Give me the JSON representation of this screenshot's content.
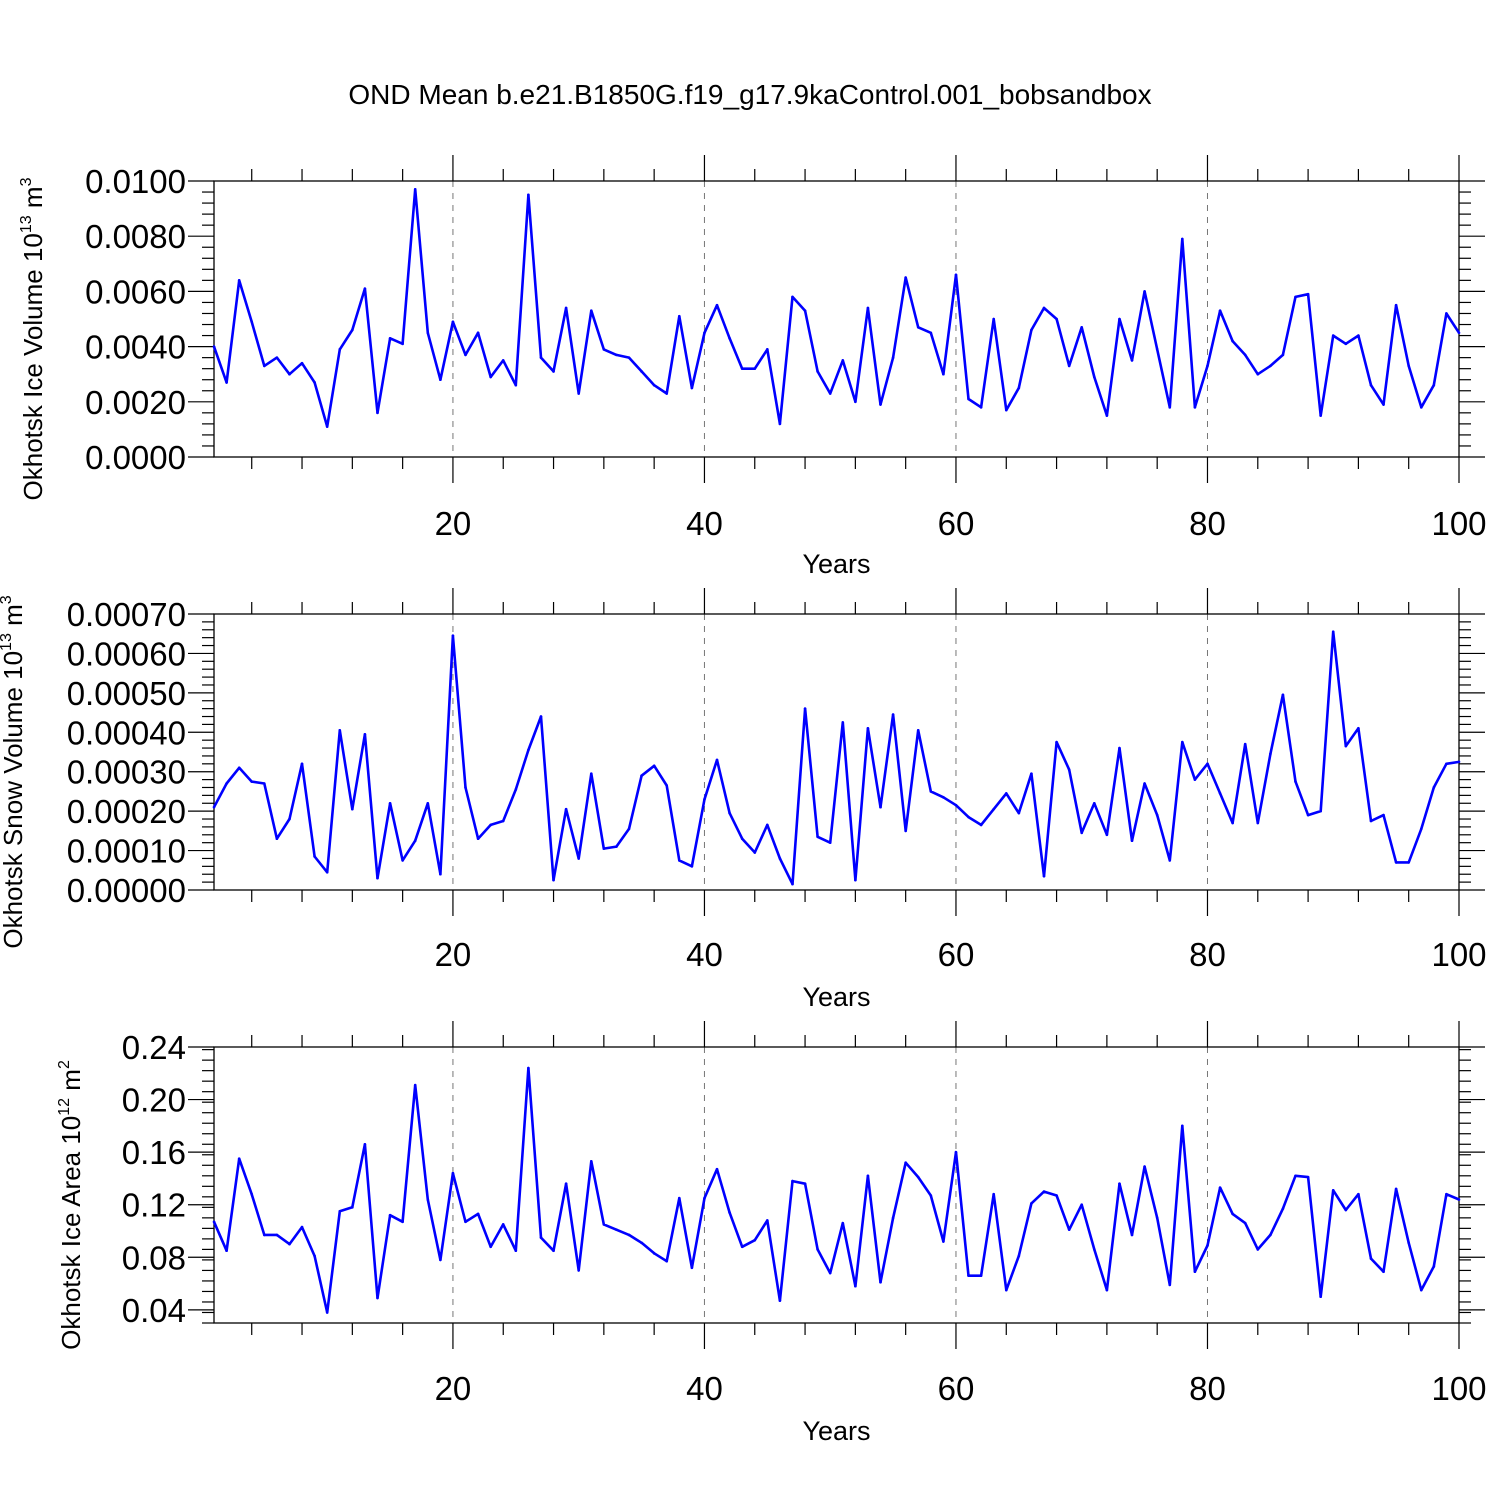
{
  "title": "OND Mean b.e21.B1850G.f19_g17.9kaControl.001_bobsandbox",
  "series_color": "#0000ff",
  "chart_data": [
    {
      "type": "line",
      "ylabel_main": "Okhotsk Ice Volume 10",
      "ylabel_exp": "13",
      "ylabel_unit": " m",
      "ylabel_unit_exp": "3",
      "xlabel": "Years",
      "xlim": [
        1,
        100
      ],
      "ylim": [
        0,
        0.01
      ],
      "yticks": [
        0,
        0.002,
        0.004,
        0.006,
        0.008,
        0.01
      ],
      "ytick_labels": [
        "0.0000",
        "0.0020",
        "0.0040",
        "0.0060",
        "0.0080",
        "0.0100"
      ],
      "xticks": [
        20,
        40,
        60,
        80,
        100
      ],
      "xtick_labels": [
        "20",
        "40",
        "60",
        "80",
        "100"
      ],
      "values": [
        0.004,
        0.0027,
        0.0064,
        0.0049,
        0.0033,
        0.0036,
        0.003,
        0.0034,
        0.0027,
        0.0011,
        0.0039,
        0.0046,
        0.0061,
        0.0016,
        0.0043,
        0.0041,
        0.0097,
        0.0045,
        0.0028,
        0.0049,
        0.0037,
        0.0045,
        0.0029,
        0.0035,
        0.0026,
        0.0095,
        0.0036,
        0.0031,
        0.0054,
        0.0023,
        0.0053,
        0.0039,
        0.0037,
        0.0036,
        0.0031,
        0.0026,
        0.0023,
        0.0051,
        0.0025,
        0.0045,
        0.0055,
        0.0043,
        0.0032,
        0.0032,
        0.0039,
        0.0012,
        0.0058,
        0.0053,
        0.0031,
        0.0023,
        0.0035,
        0.002,
        0.0054,
        0.0019,
        0.0036,
        0.0065,
        0.0047,
        0.0045,
        0.003,
        0.0066,
        0.0021,
        0.0018,
        0.005,
        0.0017,
        0.0025,
        0.0046,
        0.0054,
        0.005,
        0.0033,
        0.0047,
        0.0029,
        0.0015,
        0.005,
        0.0035,
        0.006,
        0.0039,
        0.0018,
        0.0079,
        0.0018,
        0.0033,
        0.0053,
        0.0042,
        0.0037,
        0.003,
        0.0033,
        0.0037,
        0.0058,
        0.0059,
        0.0015,
        0.0044,
        0.0041,
        0.0044,
        0.0026,
        0.0019,
        0.0055,
        0.0033,
        0.0018,
        0.0026,
        0.0052,
        0.0045
      ]
    },
    {
      "type": "line",
      "ylabel_main": "Okhotsk Snow Volume 10",
      "ylabel_exp": "13",
      "ylabel_unit": " m",
      "ylabel_unit_exp": "3",
      "xlabel": "Years",
      "xlim": [
        1,
        100
      ],
      "ylim": [
        0,
        0.0007
      ],
      "yticks": [
        0,
        0.0001,
        0.0002,
        0.0003,
        0.0004,
        0.0005,
        0.0006,
        0.0007
      ],
      "ytick_labels": [
        "0.00000",
        "0.00010",
        "0.00020",
        "0.00030",
        "0.00040",
        "0.00050",
        "0.00060",
        "0.00070"
      ],
      "xticks": [
        20,
        40,
        60,
        80,
        100
      ],
      "xtick_labels": [
        "20",
        "40",
        "60",
        "80",
        "100"
      ],
      "values": [
        0.00021,
        0.00027,
        0.00031,
        0.000275,
        0.00027,
        0.00013,
        0.00018,
        0.00032,
        8.5e-05,
        4.5e-05,
        0.000405,
        0.000205,
        0.000395,
        3e-05,
        0.00022,
        7.5e-05,
        0.000125,
        0.00022,
        4e-05,
        0.000645,
        0.00026,
        0.00013,
        0.000165,
        0.000175,
        0.000255,
        0.000355,
        0.00044,
        2.5e-05,
        0.000205,
        8e-05,
        0.000295,
        0.000105,
        0.00011,
        0.000155,
        0.00029,
        0.000315,
        0.000265,
        7.5e-05,
        6e-05,
        0.00023,
        0.00033,
        0.000195,
        0.00013,
        9.5e-05,
        0.000165,
        8e-05,
        1.5e-05,
        0.00046,
        0.000135,
        0.00012,
        0.000425,
        2.5e-05,
        0.00041,
        0.00021,
        0.000445,
        0.00015,
        0.000405,
        0.00025,
        0.000235,
        0.000215,
        0.000185,
        0.000165,
        0.000205,
        0.000245,
        0.000195,
        0.000295,
        3.5e-05,
        0.000375,
        0.000305,
        0.000145,
        0.00022,
        0.00014,
        0.00036,
        0.000125,
        0.00027,
        0.00019,
        7.5e-05,
        0.000375,
        0.00028,
        0.00032,
        0.000245,
        0.00017,
        0.00037,
        0.00017,
        0.000345,
        0.000495,
        0.000275,
        0.00019,
        0.0002,
        0.000655,
        0.000365,
        0.00041,
        0.000175,
        0.00019,
        7e-05,
        7e-05,
        0.000155,
        0.00026,
        0.00032,
        0.000325
      ]
    },
    {
      "type": "line",
      "ylabel_main": "Okhotsk Ice Area 10",
      "ylabel_exp": "12",
      "ylabel_unit": " m",
      "ylabel_unit_exp": "2",
      "xlabel": "Years",
      "xlim": [
        1,
        100
      ],
      "ylim": [
        0.03,
        0.24
      ],
      "yticks": [
        0.04,
        0.08,
        0.12,
        0.16,
        0.2,
        0.24
      ],
      "ytick_labels": [
        "0.04",
        "0.08",
        "0.12",
        "0.16",
        "0.20",
        "0.24"
      ],
      "xticks": [
        20,
        40,
        60,
        80,
        100
      ],
      "xtick_labels": [
        "20",
        "40",
        "60",
        "80",
        "100"
      ],
      "values": [
        0.107,
        0.085,
        0.155,
        0.128,
        0.097,
        0.097,
        0.09,
        0.103,
        0.081,
        0.038,
        0.115,
        0.118,
        0.166,
        0.049,
        0.112,
        0.107,
        0.211,
        0.124,
        0.078,
        0.144,
        0.107,
        0.113,
        0.088,
        0.105,
        0.085,
        0.224,
        0.095,
        0.085,
        0.136,
        0.07,
        0.153,
        0.105,
        0.101,
        0.097,
        0.091,
        0.083,
        0.077,
        0.125,
        0.072,
        0.125,
        0.147,
        0.114,
        0.088,
        0.093,
        0.108,
        0.047,
        0.138,
        0.136,
        0.086,
        0.068,
        0.106,
        0.058,
        0.142,
        0.061,
        0.11,
        0.152,
        0.141,
        0.127,
        0.092,
        0.16,
        0.066,
        0.066,
        0.128,
        0.055,
        0.081,
        0.121,
        0.13,
        0.127,
        0.101,
        0.12,
        0.086,
        0.055,
        0.136,
        0.097,
        0.149,
        0.11,
        0.059,
        0.18,
        0.069,
        0.089,
        0.133,
        0.113,
        0.106,
        0.086,
        0.097,
        0.117,
        0.142,
        0.141,
        0.05,
        0.131,
        0.116,
        0.128,
        0.079,
        0.069,
        0.132,
        0.091,
        0.055,
        0.073,
        0.128,
        0.124
      ]
    }
  ]
}
